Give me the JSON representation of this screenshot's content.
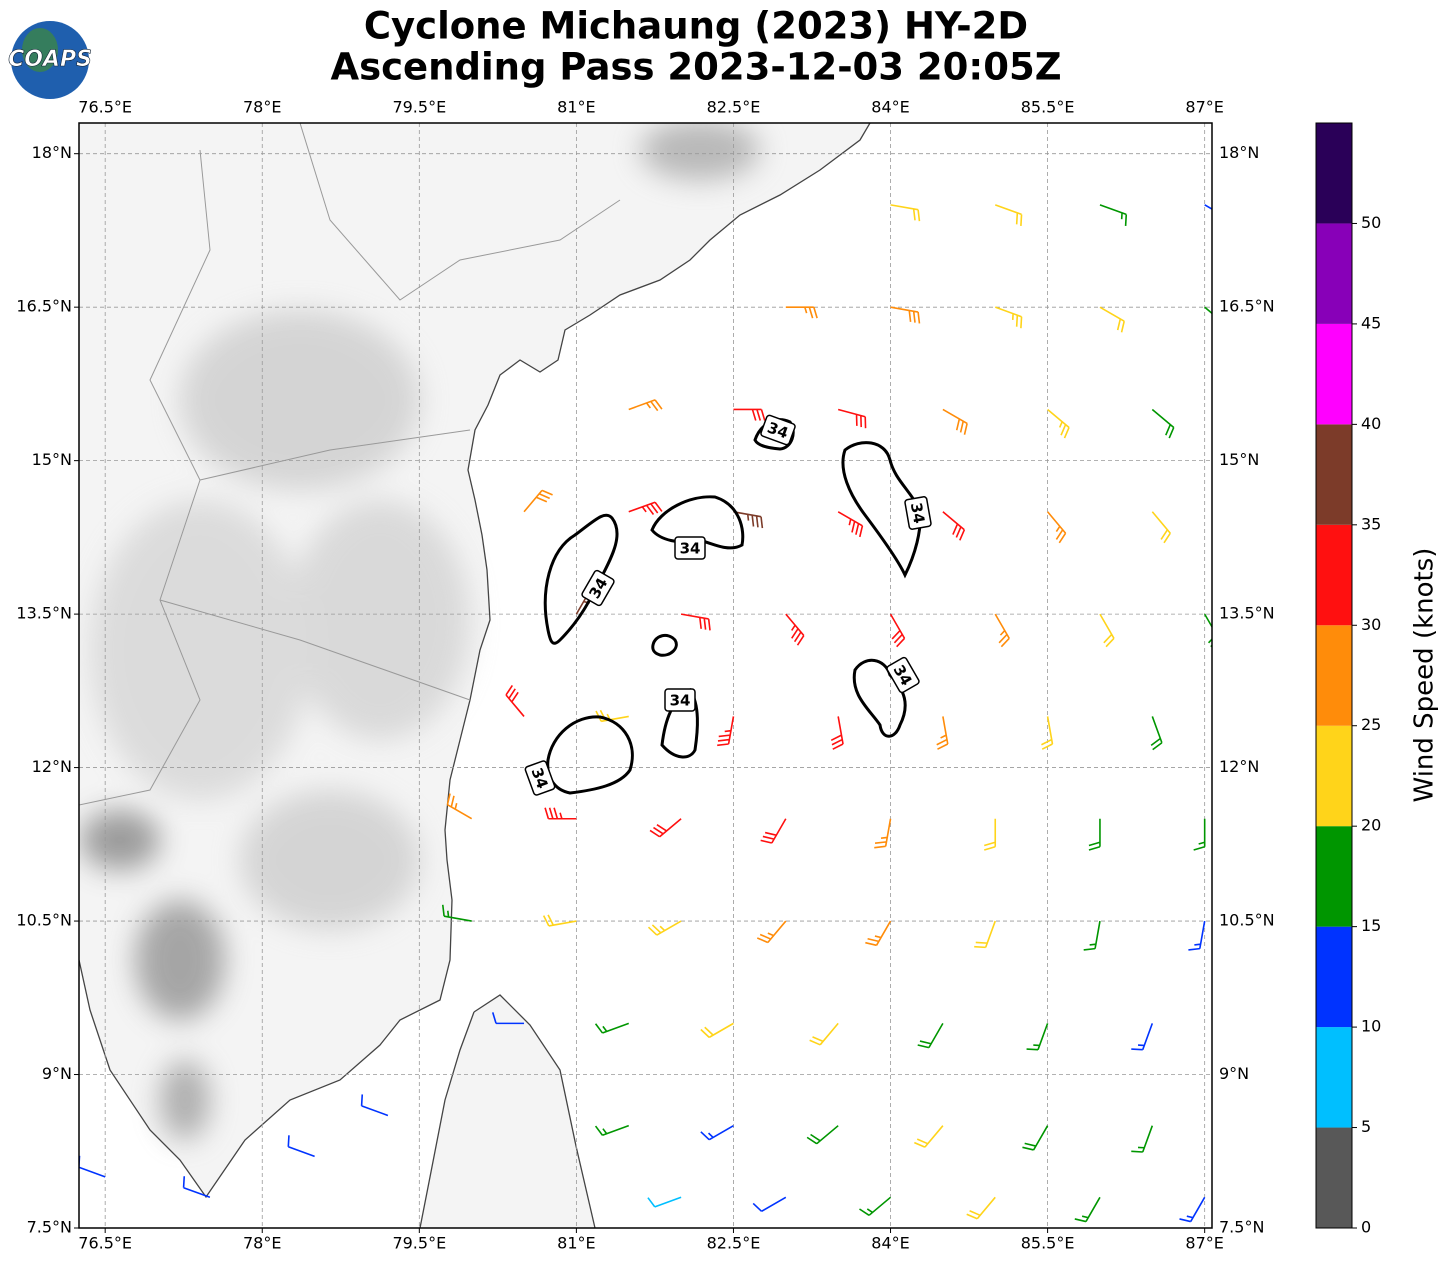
{
  "logo": "COAPS",
  "chart_data": {
    "type": "barbs",
    "title": "Cyclone Michaung (2023) HY-2D",
    "subtitle": "Ascending Pass 2023-12-03 20:05Z",
    "xlim": [
      76.25,
      87.07
    ],
    "ylim": [
      7.5,
      18.3
    ],
    "xticks": [
      {
        "value": 76.5,
        "label": "76.5°E"
      },
      {
        "value": 78,
        "label": "78°E"
      },
      {
        "value": 79.5,
        "label": "79.5°E"
      },
      {
        "value": 81,
        "label": "81°E"
      },
      {
        "value": 82.5,
        "label": "82.5°E"
      },
      {
        "value": 84,
        "label": "84°E"
      },
      {
        "value": 85.5,
        "label": "85.5°E"
      },
      {
        "value": 87,
        "label": "87°E"
      }
    ],
    "yticks": [
      {
        "value": 7.5,
        "label": "7.5°N"
      },
      {
        "value": 9,
        "label": "9°N"
      },
      {
        "value": 10.5,
        "label": "10.5°N"
      },
      {
        "value": 12,
        "label": "12°N"
      },
      {
        "value": 13.5,
        "label": "13.5°N"
      },
      {
        "value": 15,
        "label": "15°N"
      },
      {
        "value": 16.5,
        "label": "16.5°N"
      },
      {
        "value": 18,
        "label": "18°N"
      }
    ],
    "grid": true,
    "contour_level": 34,
    "barbs": [
      [
        84,
        17.5,
        22,
        100
      ],
      [
        85,
        17.5,
        20,
        110
      ],
      [
        86,
        17.5,
        17,
        110
      ],
      [
        87,
        17.5,
        13,
        120
      ],
      [
        83,
        16.5,
        27,
        90
      ],
      [
        84,
        16.5,
        28,
        100
      ],
      [
        85,
        16.5,
        24,
        110
      ],
      [
        86,
        16.5,
        21,
        120
      ],
      [
        87,
        16.5,
        18,
        130
      ],
      [
        81.5,
        15.5,
        27,
        70
      ],
      [
        82.5,
        15.5,
        32,
        90
      ],
      [
        83.5,
        15.5,
        31,
        105
      ],
      [
        84.5,
        15.5,
        28,
        120
      ],
      [
        85.5,
        15.5,
        23,
        130
      ],
      [
        86.5,
        15.5,
        19,
        130
      ],
      [
        80.5,
        14.5,
        28,
        40
      ],
      [
        81.5,
        14.5,
        33,
        70
      ],
      [
        82.5,
        14.5,
        36,
        100
      ],
      [
        83.5,
        14.5,
        33,
        120
      ],
      [
        84.5,
        14.5,
        31,
        130
      ],
      [
        85.5,
        14.5,
        25,
        140
      ],
      [
        86.5,
        14.5,
        20,
        140
      ],
      [
        81,
        13.5,
        36,
        30
      ],
      [
        82,
        13.5,
        31,
        100
      ],
      [
        83,
        13.5,
        33,
        140
      ],
      [
        84,
        13.5,
        32,
        150
      ],
      [
        85,
        13.5,
        27,
        150
      ],
      [
        86,
        13.5,
        22,
        150
      ],
      [
        87,
        13.5,
        19,
        150
      ],
      [
        80.5,
        12.5,
        31,
        320
      ],
      [
        81.5,
        12.5,
        23,
        260
      ],
      [
        82.5,
        12.5,
        34,
        190
      ],
      [
        83.5,
        12.5,
        31,
        170
      ],
      [
        84.5,
        12.5,
        26,
        170
      ],
      [
        85.5,
        12.5,
        22,
        170
      ],
      [
        86.5,
        12.5,
        18,
        160
      ],
      [
        80,
        11.5,
        27,
        300
      ],
      [
        81,
        11.5,
        33,
        270
      ],
      [
        82,
        11.5,
        32,
        230
      ],
      [
        83,
        11.5,
        31,
        210
      ],
      [
        84,
        11.5,
        27,
        190
      ],
      [
        85,
        11.5,
        22,
        180
      ],
      [
        86,
        11.5,
        18,
        180
      ],
      [
        87,
        11.5,
        16,
        180
      ],
      [
        80,
        10.5,
        17,
        280
      ],
      [
        81,
        10.5,
        22,
        260
      ],
      [
        82,
        10.5,
        24,
        240
      ],
      [
        83,
        10.5,
        26,
        220
      ],
      [
        84,
        10.5,
        26,
        210
      ],
      [
        85,
        10.5,
        21,
        200
      ],
      [
        86,
        10.5,
        17,
        190
      ],
      [
        87,
        10.5,
        14,
        190
      ],
      [
        80.5,
        9.5,
        12,
        270
      ],
      [
        81.5,
        9.5,
        17,
        250
      ],
      [
        82.5,
        9.5,
        20,
        240
      ],
      [
        83.5,
        9.5,
        22,
        220
      ],
      [
        84.5,
        9.5,
        19,
        210
      ],
      [
        85.5,
        9.5,
        17,
        200
      ],
      [
        86.5,
        9.5,
        14,
        200
      ],
      [
        81.5,
        8.5,
        17,
        250
      ],
      [
        82.5,
        8.5,
        13,
        240
      ],
      [
        83.5,
        8.5,
        18,
        230
      ],
      [
        84.5,
        8.5,
        22,
        220
      ],
      [
        85.5,
        8.5,
        19,
        210
      ],
      [
        86.5,
        8.5,
        16,
        200
      ],
      [
        82,
        7.8,
        8,
        250
      ],
      [
        83,
        7.8,
        12,
        240
      ],
      [
        84,
        7.8,
        17,
        230
      ],
      [
        85,
        7.8,
        20,
        220
      ],
      [
        86,
        7.8,
        17,
        210
      ],
      [
        87,
        7.8,
        14,
        210
      ],
      [
        76.5,
        8,
        12,
        290
      ],
      [
        77.5,
        7.8,
        12,
        290
      ],
      [
        78.5,
        8.2,
        12,
        290
      ],
      [
        79.2,
        8.6,
        11,
        290
      ]
    ],
    "colorbar": {
      "label": "Wind Speed (knots)",
      "bounds": [
        0,
        5,
        10,
        15,
        20,
        25,
        30,
        35,
        40,
        45,
        50,
        55
      ],
      "colors": [
        "#585858",
        "#00bfff",
        "#0033ff",
        "#009600",
        "#ffd41a",
        "#ff8c0a",
        "#ff1010",
        "#7c3b29",
        "#ff00ff",
        "#8800b8",
        "#2a0058"
      ],
      "ticks": [
        0,
        5,
        10,
        15,
        20,
        25,
        30,
        35,
        40,
        45,
        50
      ]
    }
  }
}
